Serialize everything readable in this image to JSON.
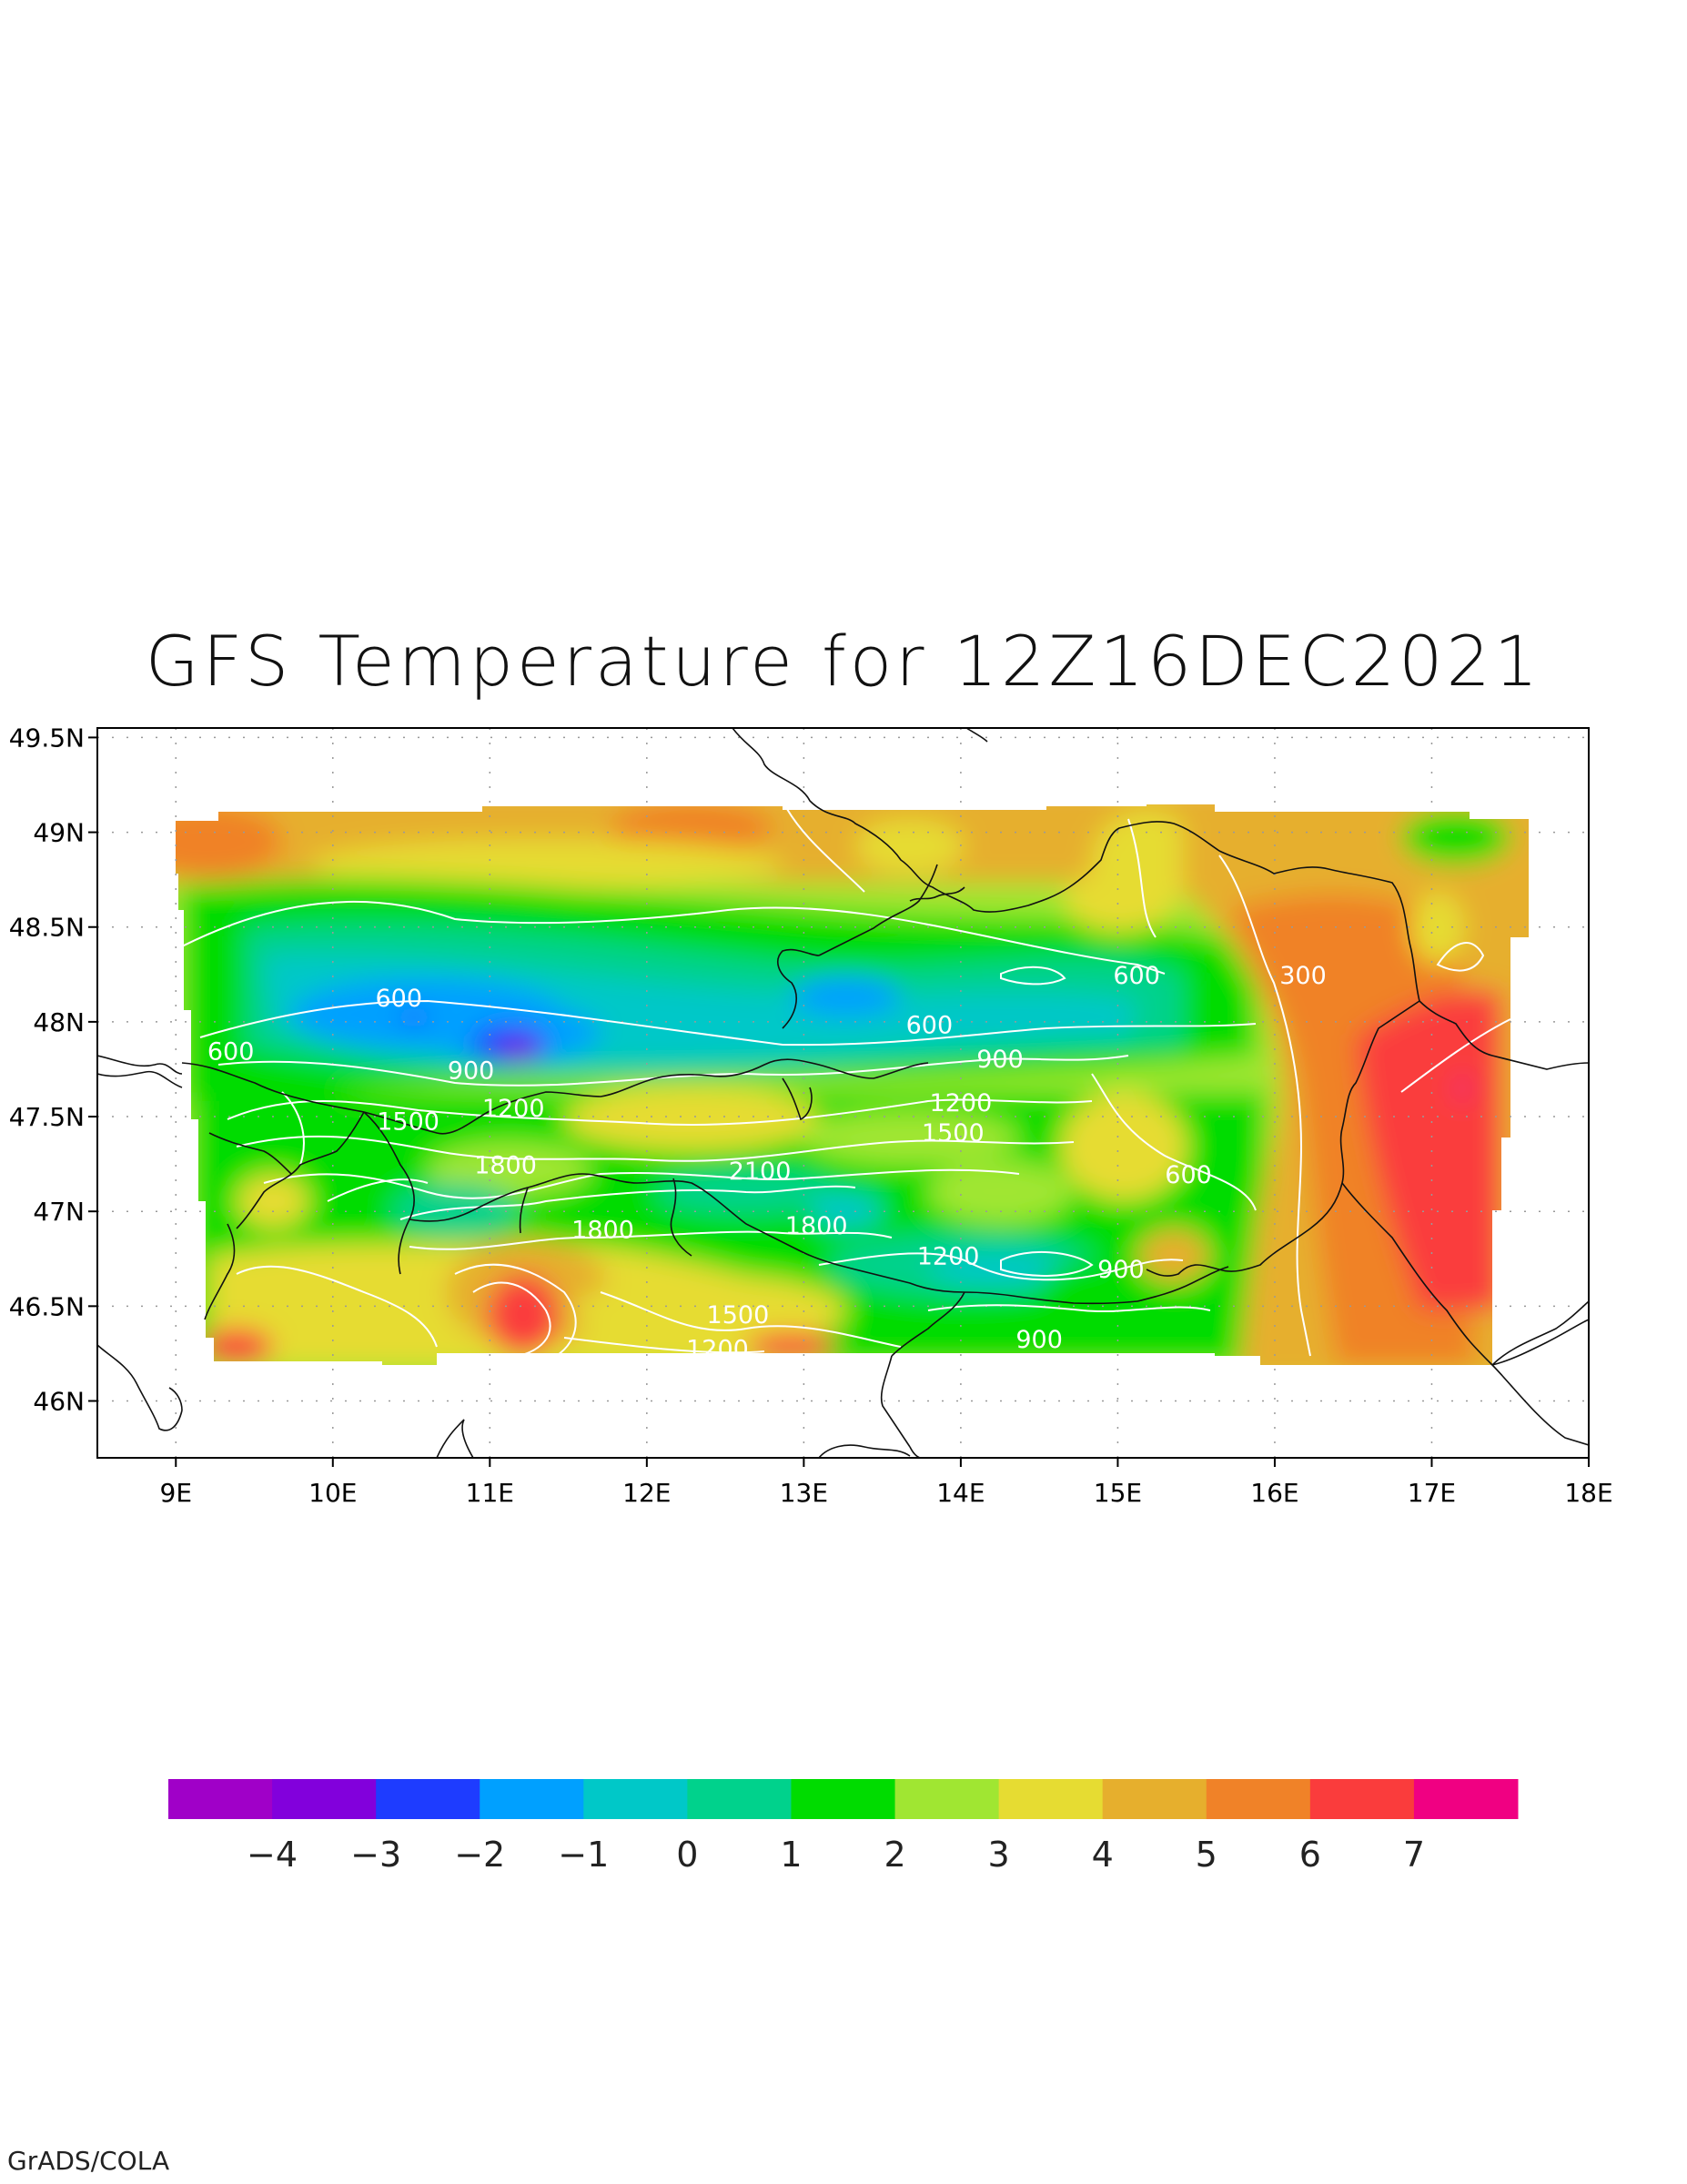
{
  "title": "GFS Temperature for 12Z16DEC2021",
  "credit": "GrADS/COLA",
  "map": {
    "lon_range": [
      8.5,
      18.0
    ],
    "lat_range": [
      45.7,
      49.55
    ],
    "lon_ticks": [
      9,
      10,
      11,
      12,
      13,
      14,
      15,
      16,
      17,
      18
    ],
    "lon_tick_labels": [
      "9E",
      "10E",
      "11E",
      "12E",
      "13E",
      "14E",
      "15E",
      "16E",
      "17E",
      "18E"
    ],
    "lat_ticks": [
      46.0,
      46.5,
      47.0,
      47.5,
      48.0,
      48.5,
      49.0,
      49.5
    ],
    "lat_tick_labels": [
      "46N",
      "46.5N",
      "47N",
      "47.5N",
      "48N",
      "48.5N",
      "49N",
      "49.5N"
    ],
    "grid": "dotted",
    "shaded_variable": "temperature",
    "contour_variable": "terrain height",
    "contour_color": "#ffffff",
    "contour_labels": [
      {
        "text": "600",
        "lon": 9.35,
        "lat": 47.8
      },
      {
        "text": "600",
        "lon": 10.42,
        "lat": 48.08
      },
      {
        "text": "900",
        "lon": 10.88,
        "lat": 47.7
      },
      {
        "text": "1200",
        "lon": 11.15,
        "lat": 47.5
      },
      {
        "text": "1500",
        "lon": 10.48,
        "lat": 47.43
      },
      {
        "text": "1800",
        "lon": 11.1,
        "lat": 47.2
      },
      {
        "text": "1800",
        "lon": 11.72,
        "lat": 46.86
      },
      {
        "text": "2100",
        "lon": 12.72,
        "lat": 47.17
      },
      {
        "text": "1800",
        "lon": 13.08,
        "lat": 46.88
      },
      {
        "text": "1500",
        "lon": 12.58,
        "lat": 46.41
      },
      {
        "text": "1200",
        "lon": 12.45,
        "lat": 46.23
      },
      {
        "text": "600",
        "lon": 13.8,
        "lat": 47.94
      },
      {
        "text": "900",
        "lon": 14.25,
        "lat": 47.76
      },
      {
        "text": "1200",
        "lon": 14.0,
        "lat": 47.53
      },
      {
        "text": "1500",
        "lon": 13.95,
        "lat": 47.37
      },
      {
        "text": "1200",
        "lon": 13.92,
        "lat": 46.72
      },
      {
        "text": "900",
        "lon": 15.02,
        "lat": 46.65
      },
      {
        "text": "900",
        "lon": 14.5,
        "lat": 46.28
      },
      {
        "text": "600",
        "lon": 15.12,
        "lat": 48.2
      },
      {
        "text": "300",
        "lon": 16.18,
        "lat": 48.2
      },
      {
        "text": "600",
        "lon": 15.45,
        "lat": 47.15
      }
    ]
  },
  "colorbar": {
    "colors": [
      "#a000c8",
      "#8200dc",
      "#1e3cff",
      "#00a0ff",
      "#00c8c8",
      "#00d28c",
      "#00dc00",
      "#a0e632",
      "#e6dc32",
      "#e6af2d",
      "#f08228",
      "#fa3c3c",
      "#f00082"
    ],
    "labels": [
      "−4",
      "−3",
      "−2",
      "−1",
      "0",
      "1",
      "2",
      "3",
      "4",
      "5",
      "6",
      "7"
    ]
  }
}
